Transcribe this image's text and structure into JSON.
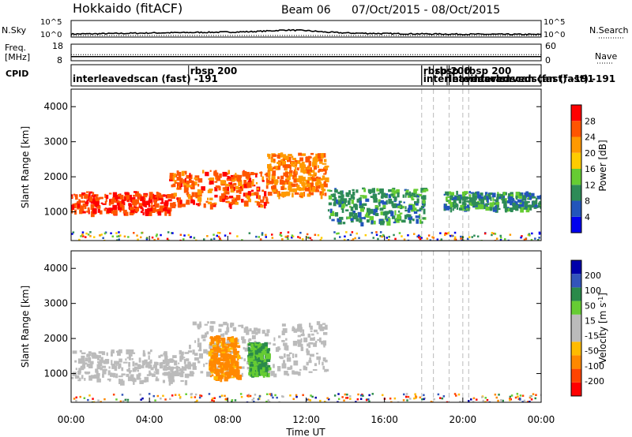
{
  "header": {
    "title": "Hokkaido (fitACF)",
    "beam": "Beam 06",
    "dates": "07/Oct/2015 - 08/Oct/2015"
  },
  "strip_labels": {
    "nsky": "N.Sky",
    "nsearch": "N.Search",
    "freq_line1": "Freq.",
    "freq_line2": "[MHz]",
    "nave": "Nave",
    "cpid": "CPID"
  },
  "noise_ticks": {
    "top": "10^5",
    "bottom": "10^0"
  },
  "freq_ticks": [
    "18",
    "8"
  ],
  "nave_ticks": [
    "60",
    "0"
  ],
  "cpid_labels": [
    {
      "text": "interleavedscan (fast) -191",
      "hour": 0.0,
      "row": 1
    },
    {
      "text": "rbsp 200",
      "hour": 6.0,
      "row": 0
    },
    {
      "text": "rbsp",
      "hour": 17.9,
      "row": 0
    },
    {
      "text": "interleavedscan",
      "hour": 17.9,
      "row": 1
    },
    {
      "text": "rbsp",
      "hour": 18.5,
      "row": 0
    },
    {
      "text": "200",
      "hour": 19.3,
      "row": 0
    },
    {
      "text": "interleavedscan (fast) -191",
      "hour": 19.2,
      "row": 1
    },
    {
      "text": "rbsp 200",
      "hour": 20.0,
      "row": 0
    },
    {
      "text": "interleavedscan (fast) -191",
      "hour": 20.3,
      "row": 1
    }
  ],
  "color_colors": {
    "power": [
      "#0000ee",
      "#2255bb",
      "#2e8b57",
      "#66cc33",
      "#ffcc00",
      "#ff9900",
      "#ff5500",
      "#ff0000"
    ],
    "velocity": [
      "#ff0000",
      "#ff4400",
      "#ff8800",
      "#ffbb00",
      "#bbbbbb",
      "#bbbbbb",
      "#66cc33",
      "#2a8a4a",
      "#3355bb",
      "#0000aa"
    ]
  },
  "colorbars": {
    "power": {
      "label": "Power [dB]",
      "ticks": [
        "28",
        "24",
        "20",
        "16",
        "12",
        "8",
        "4"
      ]
    },
    "velocity": {
      "label": "Velocity [m s",
      "label_sup": "-1",
      "label_close": "]",
      "ticks": [
        "200",
        "100",
        "50",
        "15",
        "-15",
        "-50",
        "-100",
        "-200"
      ]
    }
  },
  "chart_data": [
    {
      "type": "line",
      "name": "noise",
      "xlim": [
        0,
        24
      ],
      "ylabel_left": "N.Sky",
      "ylabel_right": "N.Search",
      "series": [
        {
          "x": [
            0,
            2,
            4,
            6,
            8,
            9,
            10,
            11,
            12,
            13,
            14,
            16,
            18,
            20,
            22,
            24
          ],
          "y": [
            0.15,
            0.18,
            0.22,
            0.25,
            0.28,
            0.3,
            0.35,
            0.42,
            0.38,
            0.28,
            0.22,
            0.18,
            0.16,
            0.14,
            0.13,
            0.12
          ]
        }
      ]
    },
    {
      "type": "line",
      "name": "frequency-nave",
      "xlim": [
        0,
        24
      ],
      "freq_mhz_range": [
        8,
        18
      ],
      "nave_range": [
        0,
        60
      ],
      "freq_mhz": 10.5,
      "nave": 22
    },
    {
      "type": "heatmap",
      "name": "power",
      "xlabel": "",
      "ylabel": "Slant Range [km]",
      "xlim": [
        0,
        24
      ],
      "ylim": [
        180,
        4500
      ],
      "yticks": [
        1000,
        2000,
        3000,
        4000
      ],
      "color_scale": [
        0,
        32
      ],
      "regions": [
        {
          "hours": [
            0,
            5
          ],
          "range": [
            1000,
            1600
          ],
          "level": 28
        },
        {
          "hours": [
            5,
            10
          ],
          "range": [
            1200,
            2200
          ],
          "level": 26
        },
        {
          "hours": [
            10,
            13
          ],
          "range": [
            1500,
            2700
          ],
          "level": 24
        },
        {
          "hours": [
            13,
            18
          ],
          "range": [
            700,
            1700
          ],
          "level": 10
        },
        {
          "hours": [
            19,
            24
          ],
          "range": [
            1100,
            1600
          ],
          "level": 10
        }
      ]
    },
    {
      "type": "heatmap",
      "name": "velocity",
      "xlabel": "Time UT",
      "ylabel": "Slant Range [km]",
      "xlim": [
        0,
        24
      ],
      "ylim": [
        180,
        4500
      ],
      "yticks": [
        1000,
        2000,
        3000,
        4000
      ],
      "color_scale": [
        -250,
        250
      ],
      "regions": [
        {
          "hours": [
            0,
            6
          ],
          "range": [
            800,
            1700
          ],
          "level": 0
        },
        {
          "hours": [
            6,
            13
          ],
          "range": [
            1000,
            2500
          ],
          "level": 0
        },
        {
          "hours": [
            7,
            8.5
          ],
          "range": [
            900,
            2100
          ],
          "level": -60
        },
        {
          "hours": [
            9,
            10
          ],
          "range": [
            1000,
            1900
          ],
          "level": 50
        }
      ]
    }
  ],
  "xaxis": {
    "label": "Time UT",
    "ticks": [
      "00:00",
      "04:00",
      "08:00",
      "12:00",
      "16:00",
      "20:00",
      "00:00"
    ],
    "hours": [
      0,
      4,
      8,
      12,
      16,
      20,
      24
    ]
  }
}
